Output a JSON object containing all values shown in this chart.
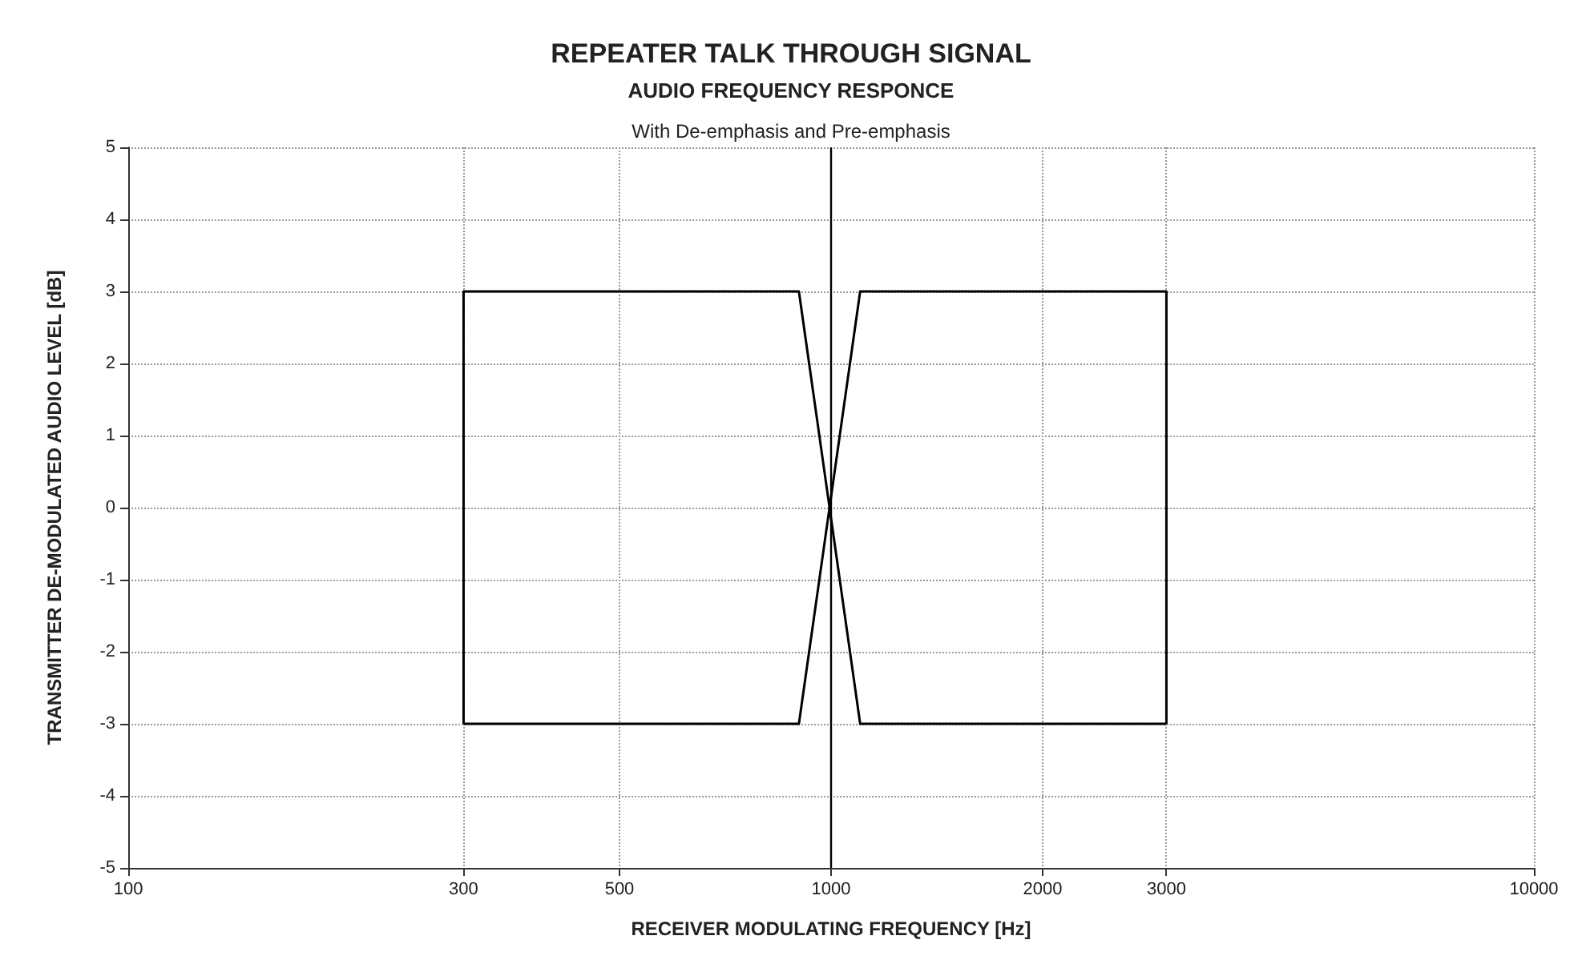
{
  "chart_data": {
    "type": "line",
    "title": "REPEATER TALK THROUGH SIGNAL",
    "subtitle": "AUDIO FREQUENCY RESPONCE",
    "annotations": [
      "With De-emphasis and Pre-emphasis"
    ],
    "xlabel": "RECEIVER MODULATING FREQUENCY [Hz]",
    "ylabel": "TRANSMITTER DE-MODULATED AUDIO LEVEL [dB]",
    "series": [
      {
        "color": "#000000",
        "x": [
          300,
          300,
          900,
          1100,
          3000
        ],
        "values": [
          -3,
          3,
          3,
          -3,
          -3
        ]
      },
      {
        "color": "#000000",
        "x": [
          300,
          900,
          1100,
          3000,
          3000
        ],
        "values": [
          -3,
          -3,
          3,
          3,
          -3
        ]
      }
    ],
    "log": "x",
    "xlim": [
      100,
      10000
    ],
    "xticks": [
      100,
      300,
      500,
      1000,
      2000,
      3000,
      10000
    ],
    "ylim": [
      -5,
      5
    ],
    "yticks": [
      -5,
      -4,
      -3,
      -2,
      -1,
      0,
      1,
      2,
      3,
      4,
      5
    ],
    "grid": true,
    "marker": "none",
    "line_style": "solid",
    "ref_lines": [
      {
        "axis": "x",
        "value": 1000,
        "color": "#000000"
      }
    ]
  }
}
